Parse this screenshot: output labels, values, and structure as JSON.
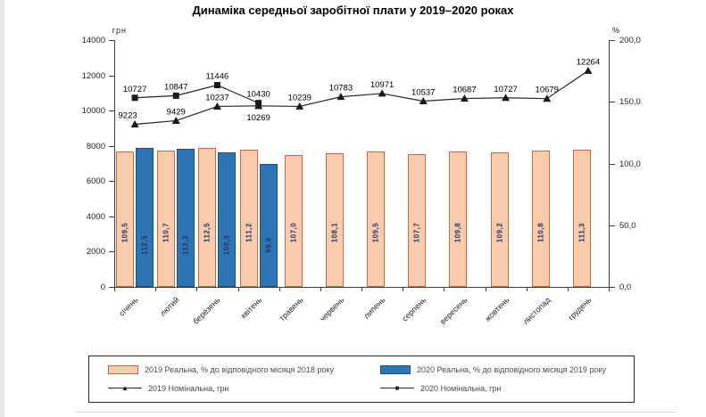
{
  "title": "Динаміка середньої заробітної плати у 2019–2020 роках",
  "chart_data": {
    "type": "bar+line combo",
    "title": "Динаміка середньої заробітної плати у 2019–2020 роках",
    "grid": false,
    "legend_position": "bottom",
    "left_axis": {
      "unit": "грн",
      "min": 0,
      "max": 14000,
      "step": 2000,
      "ticks": [
        "0",
        "2000",
        "4000",
        "6000",
        "8000",
        "10000",
        "12000",
        "14000"
      ]
    },
    "right_axis": {
      "unit": "%",
      "min": 0,
      "max": 200,
      "step": 50,
      "ticks": [
        "0,0",
        "50,0",
        "100,0",
        "150,0",
        "200,0"
      ]
    },
    "categories": [
      "січень",
      "лютий",
      "березень",
      "квітень",
      "травень",
      "червень",
      "липень",
      "серпень",
      "вересень",
      "жовтень",
      "листопад",
      "грудень"
    ],
    "series": [
      {
        "name": "2019 Реальна, % до відповідного місяця 2018 року",
        "type": "bar",
        "axis": "right",
        "fill": "#F8CBAD",
        "border": "#C96B3F",
        "values": [
          109.5,
          110.7,
          112.5,
          111.2,
          107.0,
          108.1,
          109.5,
          107.7,
          109.8,
          109.2,
          110.8,
          111.3
        ],
        "labels": [
          "109,5",
          "110,7",
          "112,5",
          "111,2",
          "107,0",
          "108,1",
          "109,5",
          "107,7",
          "109,8",
          "109,2",
          "110,8",
          "111,3"
        ]
      },
      {
        "name": "2020 Реальна, % до відповідного місяця 2019 року",
        "type": "bar",
        "axis": "right",
        "fill": "#2E75B6",
        "border": "#1F4E79",
        "values": [
          112.5,
          112.2,
          109.3,
          99.6
        ],
        "labels": [
          "112,5",
          "112,2",
          "109,3",
          "99,6"
        ]
      },
      {
        "name": "2019 Номінальна, грн",
        "type": "line",
        "axis": "left",
        "marker": "triangle",
        "color": "#262626",
        "values": [
          9223,
          9429,
          10237,
          10269,
          10239,
          10783,
          10971,
          10537,
          10687,
          10727,
          10679,
          12264
        ],
        "labels": [
          "9223",
          "9429",
          "10237",
          "10269",
          "10239",
          "10783",
          "10971",
          "10537",
          "10687",
          "10727",
          "10679",
          "12264"
        ]
      },
      {
        "name": "2020 Номінальна, грн",
        "type": "line",
        "axis": "left",
        "marker": "square",
        "color": "#262626",
        "values": [
          10727,
          10847,
          11446,
          10430
        ],
        "labels": [
          "10727",
          "10847",
          "11446",
          "10430"
        ]
      }
    ],
    "bar_label_color": "#1F3864"
  }
}
